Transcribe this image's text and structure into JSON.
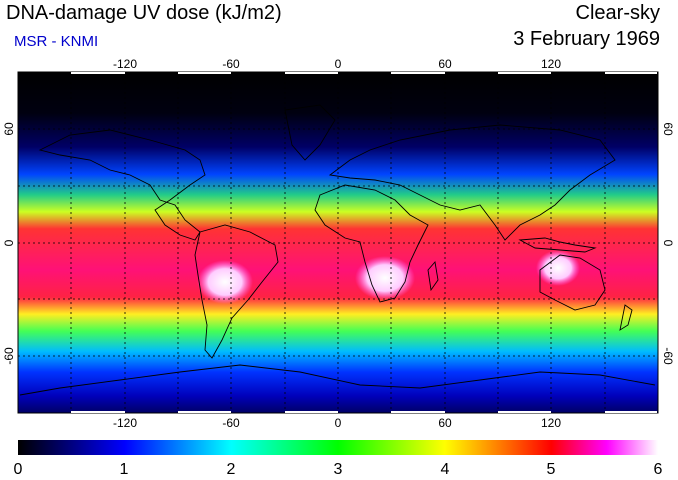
{
  "header": {
    "title": "DNA-damage UV dose (kJ/m2)",
    "subtitle": "MSR - KNMI",
    "mode": "Clear-sky",
    "date": "3 February 1969"
  },
  "map": {
    "projection": "equirectangular",
    "lon_range": [
      -180,
      180
    ],
    "lat_range": [
      -90,
      90
    ],
    "lon_ticks": [
      "-120",
      "-60",
      "0",
      "60",
      "120"
    ],
    "lat_ticks": [
      "60",
      "0",
      "-60"
    ],
    "gridlines": "dotted"
  },
  "colorbar": {
    "labels": [
      "0",
      "1",
      "2",
      "3",
      "4",
      "5",
      "6"
    ],
    "min": 0,
    "max": 6,
    "colors": [
      "#000000",
      "#0000ff",
      "#00ffff",
      "#00ff00",
      "#ffff00",
      "#ff0000",
      "#ff00ff",
      "#ffffff"
    ]
  }
}
